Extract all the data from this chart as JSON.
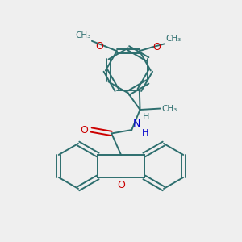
{
  "bg_color": "#efefef",
  "bond_color": "#2d6e6e",
  "oxygen_color": "#cc0000",
  "nitrogen_color": "#0000cc",
  "fig_size": [
    3.0,
    3.0
  ],
  "dpi": 100,
  "xlim": [
    0,
    10
  ],
  "ylim": [
    0,
    10
  ]
}
